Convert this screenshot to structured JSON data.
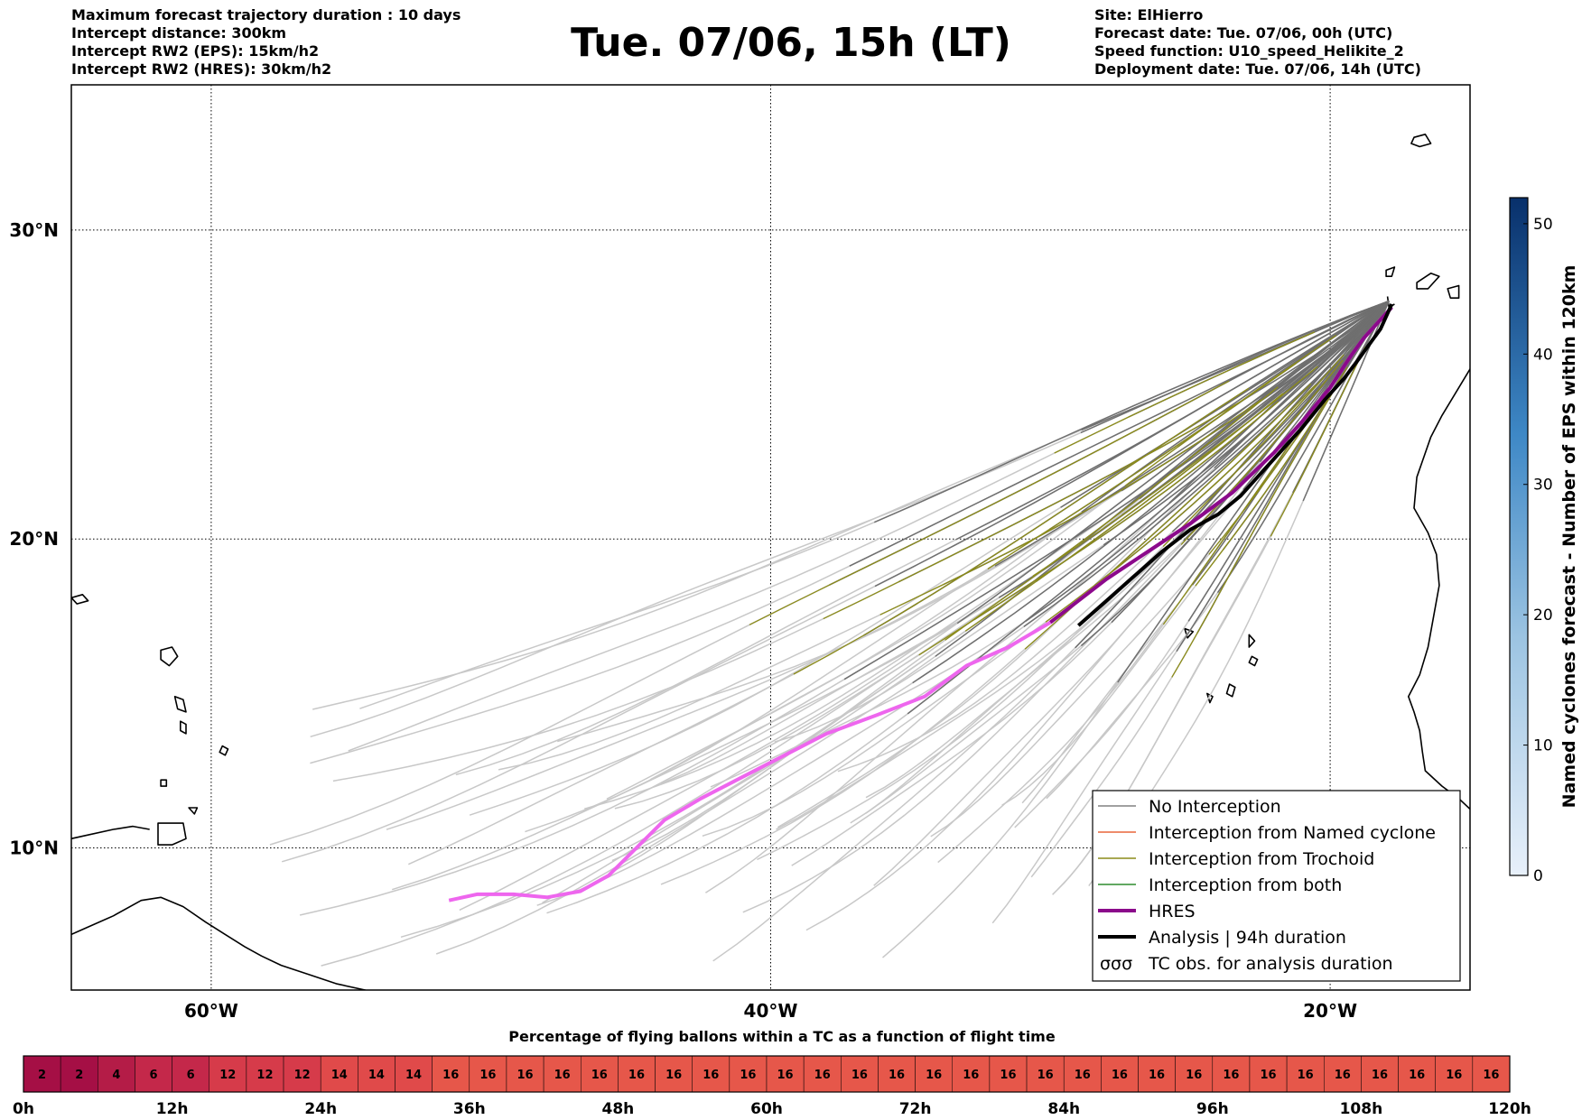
{
  "header": {
    "left": [
      "Maximum forecast trajectory duration : 10 days",
      "Intercept distance: 300km",
      "Intercept RW2 (EPS):  15km/h2",
      "Intercept RW2 (HRES): 30km/h2"
    ],
    "title": "Tue. 07/06, 15h (LT)",
    "right": [
      "Site: ElHierro",
      "Forecast date: Tue. 07/06, 00h (UTC)",
      "Speed function: U10_speed_Helikite_2",
      "Deployment date: Tue. 07/06, 14h (UTC)"
    ]
  },
  "chart_data": [
    {
      "type": "line",
      "title": "Tue. 07/06, 15h (LT)",
      "xlabel": "",
      "ylabel": "",
      "xlim": [
        -65,
        -15
      ],
      "ylim": [
        5.4,
        34.7
      ],
      "x_ticks": [
        -60,
        -40,
        -20
      ],
      "x_tick_labels": [
        "60°W",
        "40°W",
        "20°W"
      ],
      "y_ticks": [
        10,
        20,
        30
      ],
      "y_tick_labels": [
        "10°N",
        "20°N",
        "30°N"
      ],
      "grid": true,
      "legend_position": "bottom-right",
      "legend": [
        {
          "label": "No Interception",
          "color": "#808080",
          "style": "line"
        },
        {
          "label": "Interception from Named cyclone",
          "color": "#e8663a",
          "style": "line"
        },
        {
          "label": "Interception from Trochoid",
          "color": "#8c8c1a",
          "style": "line"
        },
        {
          "label": "Interception from both",
          "color": "#2e8b2e",
          "style": "line"
        },
        {
          "label": "HRES",
          "color": "#8b0a8b",
          "style": "thick"
        },
        {
          "label": "Analysis | 94h duration",
          "color": "#000000",
          "style": "thick"
        },
        {
          "label": "TC obs. for analysis duration",
          "color": "#000000",
          "style": "marker"
        }
      ],
      "series": [
        {
          "name": "HRES",
          "color": "#ee66ee",
          "x": [
            -51.5,
            -50.5,
            -49.2,
            -48.0,
            -46.8,
            -45.8,
            -44.8,
            -43.8,
            -42.5,
            -41.0,
            -39.5,
            -38.0,
            -36.2,
            -34.5,
            -33.0,
            -31.5,
            -30.0,
            -28.0,
            -26.5,
            -25.0,
            -23.5,
            -22.0,
            -21.0,
            -20.0,
            -19.5,
            -19.2,
            -18.8,
            -18.3,
            -17.8
          ],
          "y": [
            8.3,
            8.5,
            8.5,
            8.4,
            8.6,
            9.1,
            10.0,
            10.9,
            11.6,
            12.3,
            13.0,
            13.7,
            14.3,
            14.9,
            15.9,
            16.5,
            17.3,
            18.7,
            19.6,
            20.5,
            21.5,
            22.8,
            23.8,
            24.9,
            25.6,
            26.0,
            26.5,
            27.0,
            27.5
          ]
        },
        {
          "name": "Analysis | 94h duration",
          "color": "#000000",
          "x": [
            -29.0,
            -28.0,
            -27.0,
            -26.0,
            -25.0,
            -24.0,
            -23.2,
            -22.5,
            -21.8,
            -21.0,
            -20.2,
            -19.5,
            -19.0,
            -18.6,
            -18.2,
            -17.8
          ],
          "y": [
            17.2,
            18.0,
            18.8,
            19.6,
            20.3,
            20.8,
            21.4,
            22.1,
            22.8,
            23.6,
            24.5,
            25.2,
            25.8,
            26.3,
            26.8,
            27.6
          ]
        }
      ]
    },
    {
      "type": "heatmap",
      "title": "Percentage of flying ballons within a TC as a function of flight time",
      "x_tick_labels": [
        "0h",
        "12h",
        "24h",
        "36h",
        "48h",
        "60h",
        "72h",
        "84h",
        "96h",
        "108h",
        "120h"
      ],
      "values": [
        2,
        2,
        4,
        6,
        6,
        12,
        12,
        12,
        14,
        14,
        14,
        16,
        16,
        16,
        16,
        16,
        16,
        16,
        16,
        16,
        16,
        16,
        16,
        16,
        16,
        16,
        16,
        16,
        16,
        16,
        16,
        16,
        16,
        16,
        16,
        16,
        16,
        16,
        16,
        16
      ]
    },
    {
      "type": "colorbar",
      "ylabel": "Named cyclones forecast - Number of EPS within 120km",
      "ylim": [
        0,
        52
      ],
      "y_ticks": [
        0,
        10,
        20,
        30,
        40,
        50
      ],
      "y_tick_labels": [
        "0",
        "10",
        "20",
        "30",
        "40",
        "50"
      ]
    }
  ]
}
